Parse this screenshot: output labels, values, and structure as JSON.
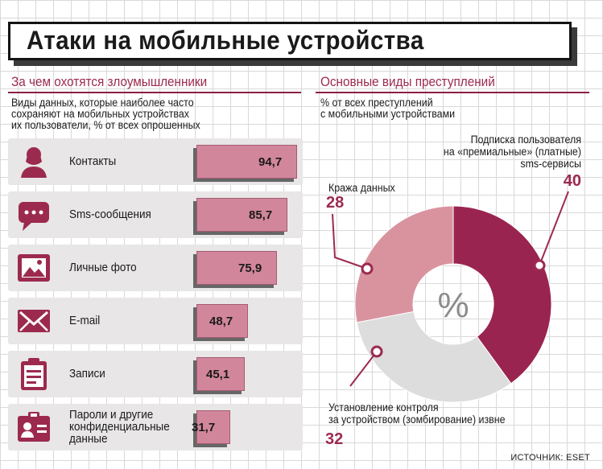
{
  "title": "Атаки на мобильные устройства",
  "left": {
    "heading": "За чем охотятся злоумышленники",
    "description": "Виды данных, которые наиболее часто\nсохраняют на мобильных устройствах\nих пользователи, % от всех опрошенных"
  },
  "right": {
    "heading": "Основные виды преступлений",
    "description": "% от всех преступлений\nс мобильными устройствами",
    "center_symbol": "%"
  },
  "source": "ИСТОЧНИК: ESET",
  "colors": {
    "accent": "#9c2a4e",
    "bar": "#d2869c",
    "dark": "#9a2450",
    "light": "#d9939f",
    "gray": "#dddddd"
  },
  "chart_data": [
    {
      "type": "bar",
      "orientation": "horizontal",
      "categories": [
        "Контакты",
        "Sms-сообщения",
        "Личные фото",
        "E-mail",
        "Записи",
        "Пароли и другие\nконфиденциальные\nданные"
      ],
      "icons": [
        "person-icon",
        "chat-bubble-icon",
        "photo-icon",
        "envelope-icon",
        "clipboard-icon",
        "id-card-icon"
      ],
      "values": [
        94.7,
        85.7,
        75.9,
        48.7,
        45.1,
        31.7
      ],
      "value_labels": [
        "94,7",
        "85,7",
        "75,9",
        "48,7",
        "45,1",
        "31,7"
      ],
      "xlim": [
        0,
        100
      ]
    },
    {
      "type": "pie",
      "slices": [
        {
          "label": "Подписка пользователя\nна «премиальные» (платные)\nsms-сервисы",
          "value": 40,
          "value_label": "40",
          "color": "#9a2450"
        },
        {
          "label": "Установление контроля\nза устройством (зомбирование) извне",
          "value": 32,
          "value_label": "32",
          "color": "#dddddd"
        },
        {
          "label": "Кража данных",
          "value": 28,
          "value_label": "28",
          "color": "#d9939f"
        }
      ]
    }
  ]
}
